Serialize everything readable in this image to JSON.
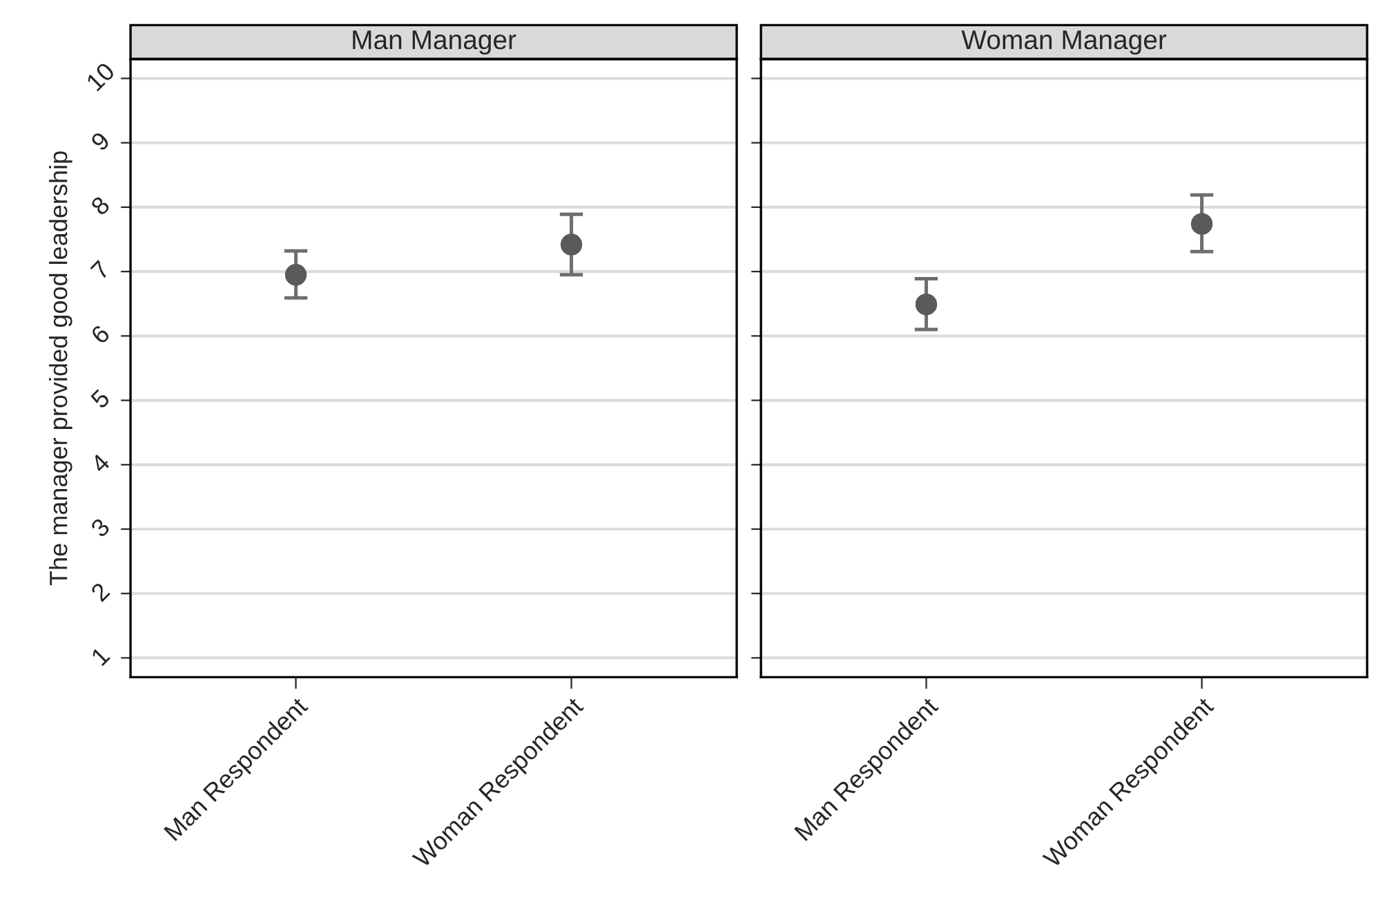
{
  "chart_data": [
    {
      "type": "scatter",
      "title": "Man Manager",
      "ylabel": "The manager provided good leadership",
      "categories": [
        "Man Respondent",
        "Woman Respondent"
      ],
      "series": [
        {
          "color": "#5a5a5a",
          "values": [
            6.95,
            7.42
          ],
          "errors": [
            [
              6.59,
              7.32
            ],
            [
              6.95,
              7.89
            ]
          ]
        }
      ],
      "ylim": [
        0.7,
        10.3
      ],
      "yticks": [
        1,
        2,
        3,
        4,
        5,
        6,
        7,
        8,
        9,
        10
      ],
      "grid": "y",
      "marker": "circle"
    },
    {
      "type": "scatter",
      "title": "Woman Manager",
      "categories": [
        "Man Respondent",
        "Woman Respondent"
      ],
      "series": [
        {
          "color": "#5a5a5a",
          "values": [
            6.49,
            7.74
          ],
          "errors": [
            [
              6.1,
              6.89
            ],
            [
              7.31,
              8.19
            ]
          ]
        }
      ],
      "ylim": [
        0.7,
        10.3
      ],
      "yticks": [
        1,
        2,
        3,
        4,
        5,
        6,
        7,
        8,
        9,
        10
      ],
      "grid": "y",
      "marker": "circle",
      "tick_labels": "x"
    }
  ]
}
